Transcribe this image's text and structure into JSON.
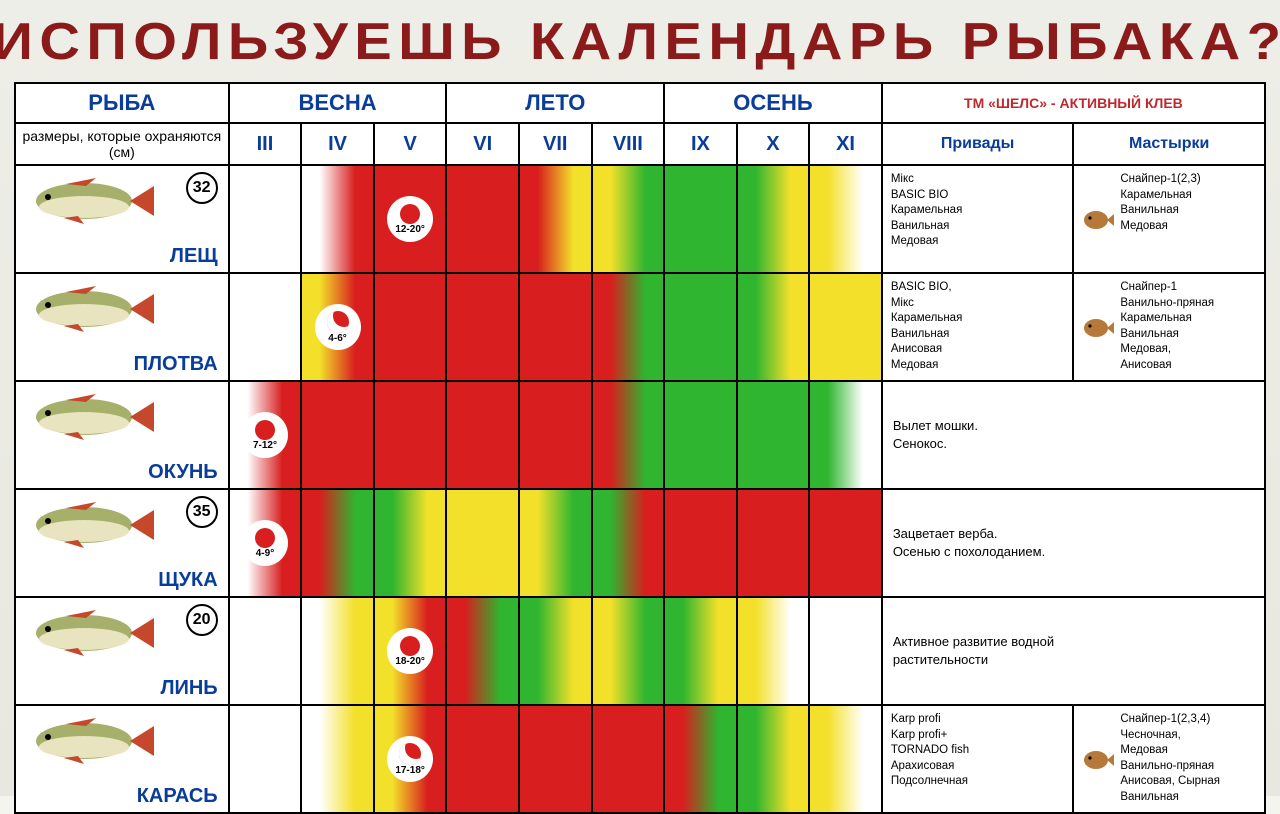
{
  "title": "ИСПОЛЬЗУЕШЬ КАЛЕНДАРЬ РЫБАКА?",
  "colors": {
    "title": "#8b1a1a",
    "header_text": "#0a3c9a",
    "brand": "#c2272d",
    "border": "#000000",
    "bg": "#eeeee8",
    "red": "#d81e1e",
    "green": "#2fb52f",
    "yellow": "#f3e02a",
    "white": "#ffffff"
  },
  "headers": {
    "fish": "РЫБА",
    "fish_sub": "размеры, которые охраняются (см)",
    "seasons": [
      "ВЕСНА",
      "ЛЕТО",
      "ОСЕНЬ"
    ],
    "months": [
      "III",
      "IV",
      "V",
      "VI",
      "VII",
      "VIII",
      "IX",
      "X",
      "XI"
    ],
    "brand": "ТМ «ШЕЛС» - АКТИВНЫЙ КЛЕВ",
    "bait_cols": [
      "Привады",
      "Мастырки"
    ]
  },
  "fish_body_color": "#a6b06a",
  "fish_belly_color": "#e8e4bf",
  "fish_fin_color": "#c5482c",
  "bait_icon_color": "#b57a3a",
  "rows": [
    {
      "name": "ЛЕЩ",
      "size": "32",
      "months": [
        {
          "colors": [
            "#ffffff",
            "#ffffff"
          ]
        },
        {
          "colors": [
            "#ffffff",
            "#d81e1e"
          ]
        },
        {
          "colors": [
            "#d81e1e",
            "#d81e1e"
          ],
          "spawn": {
            "style": "dot",
            "temp": "12-20°"
          }
        },
        {
          "colors": [
            "#d81e1e",
            "#d81e1e"
          ]
        },
        {
          "colors": [
            "#d81e1e",
            "#f3e02a"
          ]
        },
        {
          "colors": [
            "#f3e02a",
            "#2fb52f"
          ]
        },
        {
          "colors": [
            "#2fb52f",
            "#2fb52f"
          ]
        },
        {
          "colors": [
            "#2fb52f",
            "#f3e02a"
          ]
        },
        {
          "colors": [
            "#f3e02a",
            "#ffffff"
          ]
        }
      ],
      "bait1": "Мікс\nBASIC BIO\nКарамельная\nВанильная\nМедовая",
      "bait2": "Снайпер-1(2,3)\nКарамельная\nВанильная\nМедовая",
      "bait2_icon": true
    },
    {
      "name": "ПЛОТВА",
      "size": null,
      "months": [
        {
          "colors": [
            "#ffffff",
            "#ffffff"
          ]
        },
        {
          "colors": [
            "#f3e02a",
            "#d81e1e"
          ],
          "spawn": {
            "style": "moon",
            "temp": "4-6°"
          }
        },
        {
          "colors": [
            "#d81e1e",
            "#d81e1e"
          ]
        },
        {
          "colors": [
            "#d81e1e",
            "#d81e1e"
          ]
        },
        {
          "colors": [
            "#d81e1e",
            "#d81e1e"
          ]
        },
        {
          "colors": [
            "#d81e1e",
            "#2fb52f"
          ]
        },
        {
          "colors": [
            "#2fb52f",
            "#2fb52f"
          ]
        },
        {
          "colors": [
            "#2fb52f",
            "#f3e02a"
          ]
        },
        {
          "colors": [
            "#f3e02a",
            "#f3e02a"
          ]
        }
      ],
      "bait1": "BASIC BIO,\nМікс\nКарамельная\nВанильная\nАнисовая\nМедовая",
      "bait2": "Снайпер-1\nВанильно-пряная\nКарамельная\nВанильная\nМедовая,\nАнисовая",
      "bait2_icon": true
    },
    {
      "name": "ОКУНЬ",
      "size": null,
      "months": [
        {
          "colors": [
            "#ffffff",
            "#d81e1e"
          ],
          "spawn": {
            "style": "dot",
            "temp": "7-12°"
          }
        },
        {
          "colors": [
            "#d81e1e",
            "#d81e1e"
          ]
        },
        {
          "colors": [
            "#d81e1e",
            "#d81e1e"
          ]
        },
        {
          "colors": [
            "#d81e1e",
            "#d81e1e"
          ]
        },
        {
          "colors": [
            "#d81e1e",
            "#d81e1e"
          ]
        },
        {
          "colors": [
            "#d81e1e",
            "#2fb52f"
          ]
        },
        {
          "colors": [
            "#2fb52f",
            "#2fb52f"
          ]
        },
        {
          "colors": [
            "#2fb52f",
            "#2fb52f"
          ]
        },
        {
          "colors": [
            "#2fb52f",
            "#ffffff"
          ]
        }
      ],
      "note": "Вылет мошки.\nСенокос."
    },
    {
      "name": "ЩУКА",
      "size": "35",
      "months": [
        {
          "colors": [
            "#ffffff",
            "#d81e1e"
          ],
          "spawn": {
            "style": "dot",
            "temp": "4-9°"
          }
        },
        {
          "colors": [
            "#d81e1e",
            "#2fb52f"
          ]
        },
        {
          "colors": [
            "#2fb52f",
            "#f3e02a"
          ]
        },
        {
          "colors": [
            "#f3e02a",
            "#f3e02a"
          ]
        },
        {
          "colors": [
            "#f3e02a",
            "#2fb52f"
          ]
        },
        {
          "colors": [
            "#2fb52f",
            "#d81e1e"
          ]
        },
        {
          "colors": [
            "#d81e1e",
            "#d81e1e"
          ]
        },
        {
          "colors": [
            "#d81e1e",
            "#d81e1e"
          ]
        },
        {
          "colors": [
            "#d81e1e",
            "#d81e1e"
          ]
        }
      ],
      "note": "Зацветает верба.\nОсенью с похолоданием."
    },
    {
      "name": "ЛИНЬ",
      "size": "20",
      "months": [
        {
          "colors": [
            "#ffffff",
            "#ffffff"
          ]
        },
        {
          "colors": [
            "#ffffff",
            "#f3e02a"
          ]
        },
        {
          "colors": [
            "#f3e02a",
            "#d81e1e"
          ],
          "spawn": {
            "style": "dot",
            "temp": "18-20°"
          }
        },
        {
          "colors": [
            "#d81e1e",
            "#2fb52f"
          ]
        },
        {
          "colors": [
            "#2fb52f",
            "#f3e02a"
          ]
        },
        {
          "colors": [
            "#f3e02a",
            "#2fb52f"
          ]
        },
        {
          "colors": [
            "#2fb52f",
            "#f3e02a"
          ]
        },
        {
          "colors": [
            "#f3e02a",
            "#ffffff"
          ]
        },
        {
          "colors": [
            "#ffffff",
            "#ffffff"
          ]
        }
      ],
      "note": "Активное развитие водной\nрастительности"
    },
    {
      "name": "КАРАСЬ",
      "size": null,
      "months": [
        {
          "colors": [
            "#ffffff",
            "#ffffff"
          ]
        },
        {
          "colors": [
            "#ffffff",
            "#f3e02a"
          ]
        },
        {
          "colors": [
            "#f3e02a",
            "#d81e1e"
          ],
          "spawn": {
            "style": "moon",
            "temp": "17-18°"
          }
        },
        {
          "colors": [
            "#d81e1e",
            "#d81e1e"
          ]
        },
        {
          "colors": [
            "#d81e1e",
            "#d81e1e"
          ]
        },
        {
          "colors": [
            "#d81e1e",
            "#d81e1e"
          ]
        },
        {
          "colors": [
            "#d81e1e",
            "#2fb52f"
          ]
        },
        {
          "colors": [
            "#2fb52f",
            "#f3e02a"
          ]
        },
        {
          "colors": [
            "#f3e02a",
            "#ffffff"
          ]
        }
      ],
      "bait1": "Karp profi\nKarp profi+\nTORNADO fish\nАрахисовая\nПодсолнечная",
      "bait2": "Снайпер-1(2,3,4)\nЧесночная,\nМедовая\nВанильно-пряная\nАнисовая, Сырная\nВанильная",
      "bait2_icon": true
    }
  ]
}
